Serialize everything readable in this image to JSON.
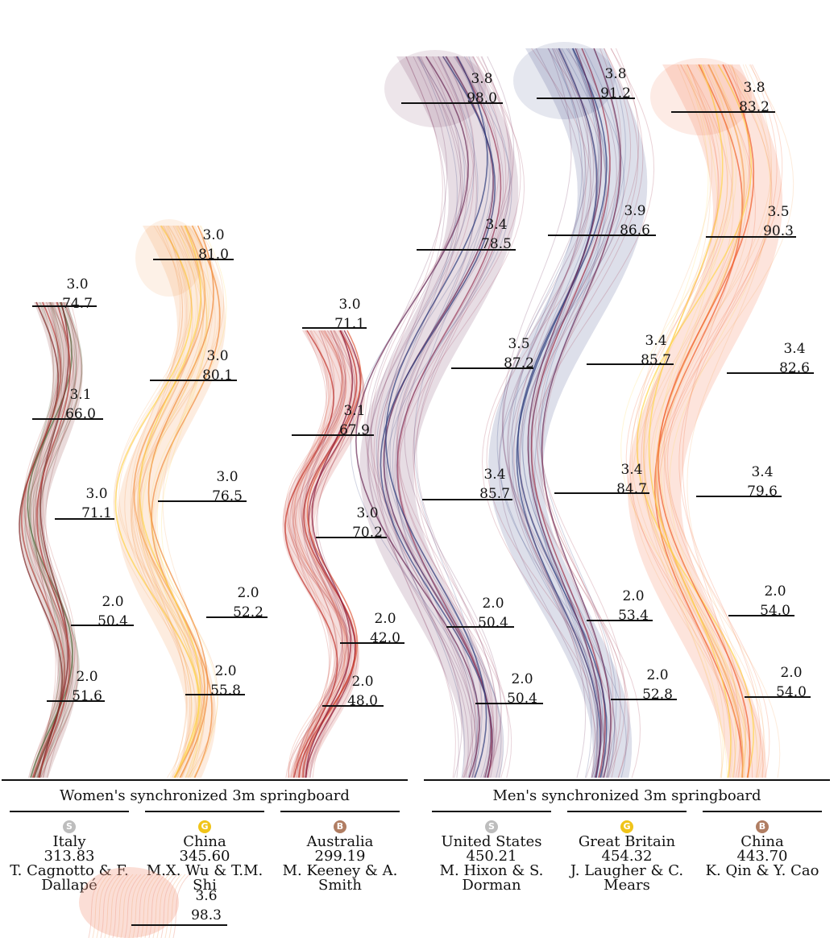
{
  "colors": {
    "silver": "#bdbdbd",
    "gold": "#f0c419",
    "bronze": "#b07d62"
  },
  "events": [
    {
      "title": "Women's synchronized 3m springboard"
    },
    {
      "title": "Men's synchronized 3m springboard"
    }
  ],
  "chart_data": {
    "type": "ribbon",
    "series": [
      {
        "event": 0,
        "medal": "S",
        "country": "Italy",
        "total": "313.83",
        "names": "T. Cagnotto & F. Dallapé",
        "colors": [
          "#7a1f1f",
          "#b8403c",
          "#4f6b3a"
        ],
        "dives": [
          {
            "dd": "3.0",
            "score": "74.7"
          },
          {
            "dd": "3.1",
            "score": "66.0"
          },
          {
            "dd": "3.0",
            "score": "71.1"
          },
          {
            "dd": "2.0",
            "score": "50.4"
          },
          {
            "dd": "2.0",
            "score": "51.6"
          }
        ]
      },
      {
        "event": 0,
        "medal": "G",
        "country": "China",
        "total": "345.60",
        "names": "M.X. Wu & T.M. Shi",
        "colors": [
          "#f08a3a",
          "#ffd54a",
          "#f6a35c"
        ],
        "dives": [
          {
            "dd": "3.0",
            "score": "81.0"
          },
          {
            "dd": "3.0",
            "score": "80.1"
          },
          {
            "dd": "3.0",
            "score": "76.5"
          },
          {
            "dd": "2.0",
            "score": "52.2"
          },
          {
            "dd": "2.0",
            "score": "55.8"
          }
        ]
      },
      {
        "event": 0,
        "medal": "B",
        "country": "Australia",
        "total": "299.19",
        "names": "M. Keeney & A. Smith",
        "colors": [
          "#c0302a",
          "#8a1a3a",
          "#e05a3a"
        ],
        "dives": [
          {
            "dd": "3.0",
            "score": "71.1"
          },
          {
            "dd": "3.1",
            "score": "67.9"
          },
          {
            "dd": "3.0",
            "score": "70.2"
          },
          {
            "dd": "2.0",
            "score": "42.0"
          },
          {
            "dd": "2.0",
            "score": "48.0"
          }
        ]
      },
      {
        "event": 1,
        "medal": "S",
        "country": "United States",
        "total": "450.21",
        "names": "M. Hixon & S. Dorman",
        "colors": [
          "#6a2a55",
          "#2c3a7a",
          "#9a3b5a"
        ],
        "dives": [
          {
            "dd": "3.8",
            "score": "98.0"
          },
          {
            "dd": "3.4",
            "score": "78.5"
          },
          {
            "dd": "3.5",
            "score": "87.2"
          },
          {
            "dd": "3.4",
            "score": "85.7"
          },
          {
            "dd": "2.0",
            "score": "50.4"
          },
          {
            "dd": "2.0",
            "score": "50.4"
          }
        ]
      },
      {
        "event": 1,
        "medal": "G",
        "country": "Great Britain",
        "total": "454.32",
        "names": "J. Laugher & C. Mears",
        "colors": [
          "#2c3a7a",
          "#6a2a55",
          "#a03048"
        ],
        "dives": [
          {
            "dd": "3.8",
            "score": "91.2"
          },
          {
            "dd": "3.9",
            "score": "86.6"
          },
          {
            "dd": "3.4",
            "score": "85.7"
          },
          {
            "dd": "3.4",
            "score": "84.7"
          },
          {
            "dd": "2.0",
            "score": "53.4"
          },
          {
            "dd": "2.0",
            "score": "52.8"
          }
        ]
      },
      {
        "event": 1,
        "medal": "B",
        "country": "China",
        "total": "443.70",
        "names": "K. Qin & Y. Cao",
        "colors": [
          "#f05a28",
          "#ffd54a",
          "#f6a35c"
        ],
        "dives": [
          {
            "dd": "3.8",
            "score": "83.2"
          },
          {
            "dd": "3.5",
            "score": "90.3"
          },
          {
            "dd": "3.4",
            "score": "82.6"
          },
          {
            "dd": "3.4",
            "score": "79.6"
          },
          {
            "dd": "2.0",
            "score": "54.0"
          },
          {
            "dd": "2.0",
            "score": "54.0"
          }
        ]
      }
    ],
    "overflow_label": {
      "dd": "3.6",
      "score": "98.3"
    }
  }
}
